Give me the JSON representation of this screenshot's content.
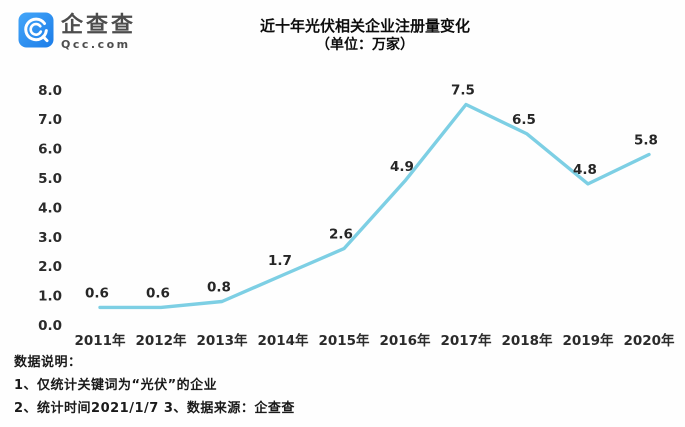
{
  "brand": {
    "name": "企查查",
    "domain": "Qcc.com",
    "icon_color_top": "#41a4f8",
    "icon_color_bottom": "#1b7ce8"
  },
  "chart_data": {
    "type": "line",
    "title": "近十年光伏相关企业注册量变化",
    "subtitle": "（单位：万家）",
    "unit": "万家",
    "categories": [
      "2011年",
      "2012年",
      "2013年",
      "2014年",
      "2015年",
      "2016年",
      "2017年",
      "2018年",
      "2019年",
      "2020年"
    ],
    "values": [
      0.6,
      0.6,
      0.8,
      1.7,
      2.6,
      4.9,
      7.5,
      6.5,
      4.8,
      5.8
    ],
    "ylim": [
      0,
      8
    ],
    "ytick_interval": 1,
    "ytick_labels": [
      "0.0",
      "1.0",
      "2.0",
      "3.0",
      "4.0",
      "5.0",
      "6.0",
      "7.0",
      "8.0"
    ],
    "grid": false,
    "legend": false,
    "line_color": "#7dcfe4",
    "axis_label_color": "#2b2b2b",
    "data_label_color": "#262626"
  },
  "notes": {
    "heading": "数据说明：",
    "line1": "1、仅统计关键词为“光伏”的企业",
    "line2": "2、统计时间2021/1/7  3、数据来源：企查查"
  }
}
